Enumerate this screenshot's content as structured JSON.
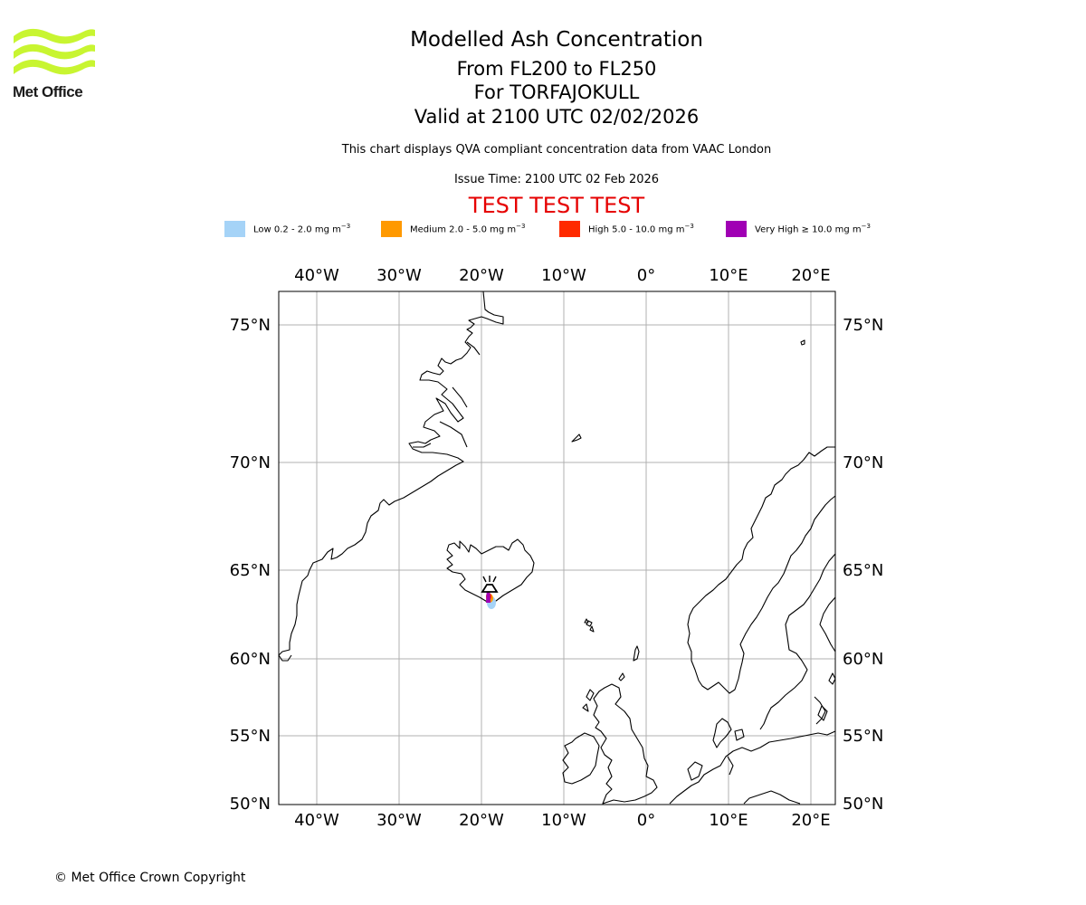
{
  "header": {
    "title": "Modelled Ash Concentration",
    "level_range": "From FL200 to FL250",
    "volcano_line": "For TORFAJOKULL",
    "valid_time": "Valid at 2100 UTC 02/02/2026",
    "compliance_note": "This chart displays QVA compliant concentration data from VAAC London",
    "issue_time": "Issue Time: 2100 UTC 02 Feb 2026",
    "test_banner": "TEST TEST TEST"
  },
  "logo": {
    "text": "Met Office",
    "color": "#c8f531"
  },
  "legend": [
    {
      "label": "Low 0.2 - 2.0 mg m",
      "exp": "−3",
      "color": "#a5d3f7"
    },
    {
      "label": "Medium 2.0 - 5.0 mg m",
      "exp": "−3",
      "color": "#ff9900"
    },
    {
      "label": "High 5.0 - 10.0 mg m",
      "exp": "−3",
      "color": "#ff2a00"
    },
    {
      "label": "Very High  ≥  10.0 mg m",
      "exp": "−3",
      "color": "#a000b4"
    }
  ],
  "map": {
    "lon_ticks": [
      "40°W",
      "30°W",
      "20°W",
      "10°W",
      "0°",
      "10°E",
      "20°E"
    ],
    "lat_ticks": [
      "75°N",
      "70°N",
      "65°N",
      "60°N",
      "55°N",
      "50°N"
    ],
    "volcano": {
      "name": "TORFAJOKULL",
      "icon": "volcano-icon"
    }
  },
  "footer": {
    "copyright": "© Met Office Crown Copyright"
  }
}
